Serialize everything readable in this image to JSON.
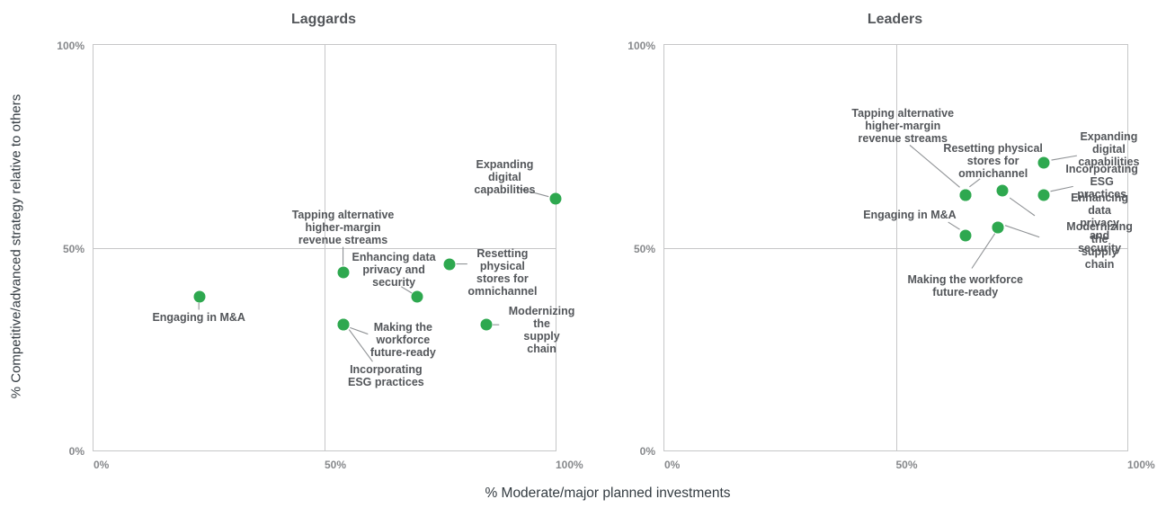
{
  "shared": {
    "x_axis_title": "% Moderate/major planned investments",
    "y_axis_title": "% Competitive/advanced strategy relative to others"
  },
  "colors": {
    "background": "#FFFFFF",
    "dot": "#2EA84F",
    "data_label": "#53565A",
    "tick_label": "#87898C",
    "chart_title": "#53565A",
    "axis_title": "#333B41",
    "leader_line": "#8F9295",
    "plot_border": "#C6C7C8",
    "gridline": "#C6C7C8"
  },
  "chart_data": [
    {
      "type": "scatter",
      "title": "Laggards",
      "xlabel": "% Moderate/major planned investments",
      "ylabel": "% Competitive/advanced strategy relative to others",
      "xlim": [
        0,
        100
      ],
      "ylim": [
        0,
        100
      ],
      "grid": {
        "x_at": 50,
        "y_at": 50
      },
      "x_ticks": [
        {
          "label": "0%",
          "frac": 0
        },
        {
          "label": "50%",
          "frac": 0.5
        },
        {
          "label": "100%",
          "frac": 1
        }
      ],
      "y_ticks": [
        {
          "label": "100%",
          "frac": 0
        },
        {
          "label": "50%",
          "frac": 0.5
        },
        {
          "label": "0%",
          "frac": 1
        }
      ],
      "points": [
        {
          "id": "engaging-in-ma",
          "label": "Engaging in M&A",
          "x": 23,
          "y": 38,
          "label_lines": [
            "Engaging in M&A"
          ],
          "label_cx": 22.8,
          "label_cy": 32.8,
          "leader": [
            22.8,
            36.4,
            22.8,
            34.7
          ]
        },
        {
          "id": "tapping-alternative-revenue",
          "label": "Tapping alternative higher-margin revenue streams",
          "x": 54,
          "y": 44,
          "label_lines": [
            "Tapping alternative",
            "higher-margin",
            "revenue streams"
          ],
          "label_cx": 54,
          "label_cy": 55,
          "leader": [
            54,
            50.2,
            54,
            45.6
          ]
        },
        {
          "id": "enhancing-data-privacy",
          "label": "Enhancing data privacy and security",
          "x": 70,
          "y": 38,
          "label_lines": [
            "Enhancing data",
            "privacy and",
            "security"
          ],
          "label_cx": 65,
          "label_cy": 44.5,
          "leader": [
            66.6,
            40.4,
            68.9,
            38.8
          ]
        },
        {
          "id": "resetting-physical-stores",
          "label": "Resetting physical stores for omnichannel",
          "x": 77,
          "y": 46,
          "label_lines": [
            "Resetting physical",
            "stores for",
            "omnichannel"
          ],
          "label_cx": 88.5,
          "label_cy": 44,
          "leader": [
            80.9,
            46,
            78.5,
            46
          ]
        },
        {
          "id": "making-workforce-future-ready",
          "label": "Making the workforce future-ready",
          "x": 54,
          "y": 31,
          "label_lines": [
            "Making the",
            "workforce",
            "future-ready"
          ],
          "label_cx": 67,
          "label_cy": 27.3,
          "leader": [
            55.5,
            30.3,
            59.4,
            28.7
          ]
        },
        {
          "id": "incorporating-esg",
          "label": "Incorporating ESG practices",
          "x": 54,
          "y": 31,
          "label_lines": [
            "Incorporating",
            "ESG practices"
          ],
          "label_cx": 63.3,
          "label_cy": 18.5,
          "leader": [
            55.3,
            29.8,
            60.4,
            21.9
          ]
        },
        {
          "id": "modernizing-supply-chain",
          "label": "Modernizing the supply chain",
          "x": 85,
          "y": 31,
          "label_lines": [
            "Modernizing the",
            "supply chain"
          ],
          "label_cx": 97,
          "label_cy": 29.7,
          "leader": [
            86.4,
            31,
            87.8,
            31
          ]
        },
        {
          "id": "expanding-digital",
          "label": "Expanding digital capabilities",
          "x": 100,
          "y": 62,
          "label_lines": [
            "Expanding digital",
            "capabilities"
          ],
          "label_cx": 89,
          "label_cy": 67.5,
          "leader": [
            91.6,
            64.7,
            98.5,
            62.6
          ]
        }
      ]
    },
    {
      "type": "scatter",
      "title": "Leaders",
      "xlabel": "% Moderate/major planned investments",
      "ylabel": "% Competitive/advanced strategy relative to others",
      "xlim": [
        0,
        100
      ],
      "ylim": [
        0,
        100
      ],
      "grid": {
        "x_at": 50,
        "y_at": 50
      },
      "x_ticks": [
        {
          "label": "0%",
          "frac": 0
        },
        {
          "label": "50%",
          "frac": 0.5
        },
        {
          "label": "100%",
          "frac": 1
        }
      ],
      "y_ticks": [
        {
          "label": "100%",
          "frac": 0
        },
        {
          "label": "50%",
          "frac": 0.5
        },
        {
          "label": "0%",
          "frac": 1
        }
      ],
      "points": [
        {
          "id": "engaging-in-ma",
          "label": "Engaging in M&A",
          "x": 65,
          "y": 53,
          "label_lines": [
            "Engaging in M&A"
          ],
          "label_cx": 53,
          "label_cy": 58.2,
          "leader": [
            61.3,
            56.3,
            63.8,
            54.5
          ]
        },
        {
          "id": "tapping-alternative-revenue",
          "label": "Tapping alternative higher-margin revenue streams",
          "x": 65,
          "y": 63,
          "label_lines": [
            "Tapping alternative",
            "higher-margin",
            "revenue streams"
          ],
          "label_cx": 51.5,
          "label_cy": 80,
          "leader": [
            53,
            75.3,
            63.8,
            64.9
          ]
        },
        {
          "id": "resetting-physical-stores",
          "label": "Resetting physical stores for omnichannel",
          "x": 65,
          "y": 63,
          "label_lines": [
            "Resetting physical",
            "stores for",
            "omnichannel"
          ],
          "label_cx": 71,
          "label_cy": 71.5,
          "leader": [
            68.2,
            67,
            65.9,
            65
          ]
        },
        {
          "id": "enhancing-data-privacy",
          "label": "Enhancing data privacy and security",
          "x": 73,
          "y": 64,
          "label_lines": [
            "Enhancing data privacy",
            "and security"
          ],
          "label_cx": 94,
          "label_cy": 56.2,
          "leader": [
            74.6,
            62.3,
            80,
            57.9
          ]
        },
        {
          "id": "incorporating-esg",
          "label": "Incorporating ESG practices",
          "x": 82,
          "y": 63,
          "label_lines": [
            "Incorporating",
            "ESG practices"
          ],
          "label_cx": 94.5,
          "label_cy": 66.3,
          "leader": [
            88.3,
            65.1,
            83.4,
            63.9
          ]
        },
        {
          "id": "expanding-digital",
          "label": "Expanding digital capabilities",
          "x": 82,
          "y": 71,
          "label_lines": [
            "Expanding digital",
            "capabilities"
          ],
          "label_cx": 96,
          "label_cy": 74.2,
          "leader": [
            89.1,
            72.7,
            83.6,
            71.6
          ]
        },
        {
          "id": "making-workforce-future-ready",
          "label": "Making the workforce future-ready",
          "x": 72,
          "y": 55,
          "label_lines": [
            "Making the workforce",
            "future-ready"
          ],
          "label_cx": 65,
          "label_cy": 40.5,
          "leader": [
            71.4,
            53.5,
            66.4,
            44.9
          ]
        },
        {
          "id": "modernizing-supply-chain",
          "label": "Modernizing the supply chain",
          "x": 72,
          "y": 55,
          "label_lines": [
            "Modernizing the",
            "supply chain"
          ],
          "label_cx": 94,
          "label_cy": 50.5,
          "leader": [
            73.6,
            55.5,
            81,
            52.6
          ]
        }
      ]
    }
  ]
}
